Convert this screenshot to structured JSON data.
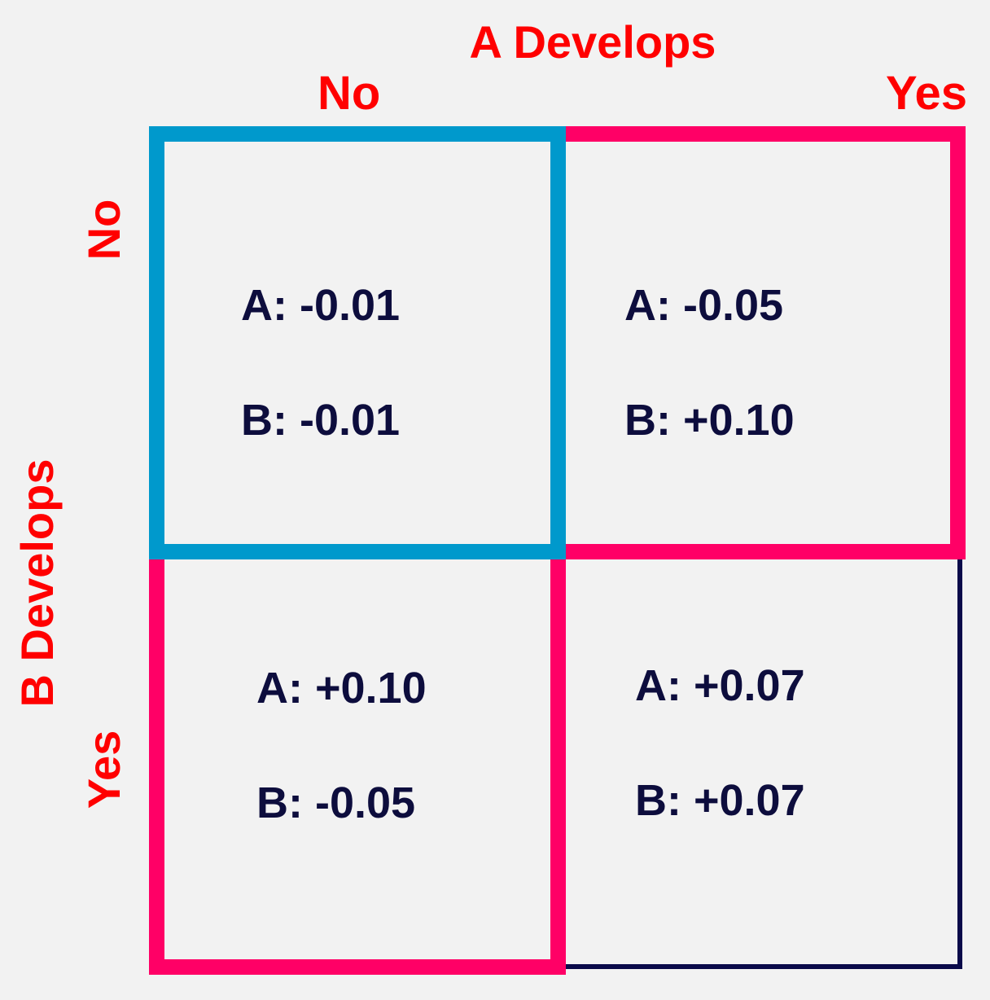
{
  "header": {
    "a_title": "A Develops",
    "col_no": "No",
    "col_yes": "Yes"
  },
  "side": {
    "b_title": "B Develops",
    "row_no": "No",
    "row_yes": "Yes"
  },
  "cells": {
    "no_no": {
      "a": "A: -0.01",
      "b": "B: -0.01",
      "border_color": "#0099cc"
    },
    "no_yes": {
      "a": "A: -0.05",
      "b": "B: +0.10",
      "border_color": "#ff0066"
    },
    "yes_no": {
      "a": "A: +0.10",
      "b": "B: -0.05",
      "border_color": "#ff0066"
    },
    "yes_yes": {
      "a": "A: +0.07",
      "b": "B: +0.07",
      "border_color": "#0a0a4a"
    }
  },
  "colors": {
    "label": "#ff0000",
    "text": "#0d0d3d",
    "background": "#f2f2f2"
  }
}
